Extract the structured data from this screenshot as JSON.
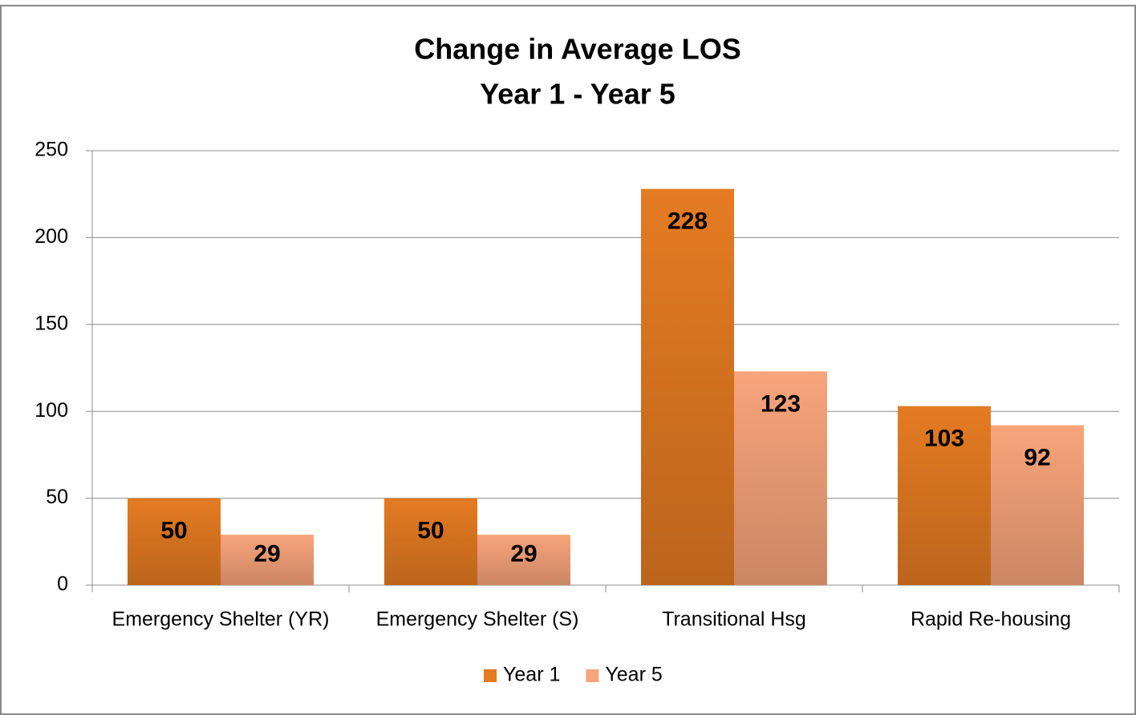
{
  "chart_data": {
    "type": "bar",
    "title": "Change in Average LOS",
    "subtitle": "Year 1 - Year 5",
    "categories": [
      "Emergency Shelter (YR)",
      "Emergency Shelter (S)",
      "Transitional Hsg",
      "Rapid Re-housing"
    ],
    "series": [
      {
        "name": "Year 1",
        "color": "#e47b22",
        "values": [
          50,
          50,
          228,
          103
        ]
      },
      {
        "name": "Year 5",
        "color": "#f7a47a",
        "values": [
          29,
          29,
          123,
          92
        ]
      }
    ],
    "ylim": [
      0,
      250
    ],
    "yticks": [
      0,
      50,
      100,
      150,
      200,
      250
    ],
    "grid": true,
    "legend": "bottom"
  }
}
